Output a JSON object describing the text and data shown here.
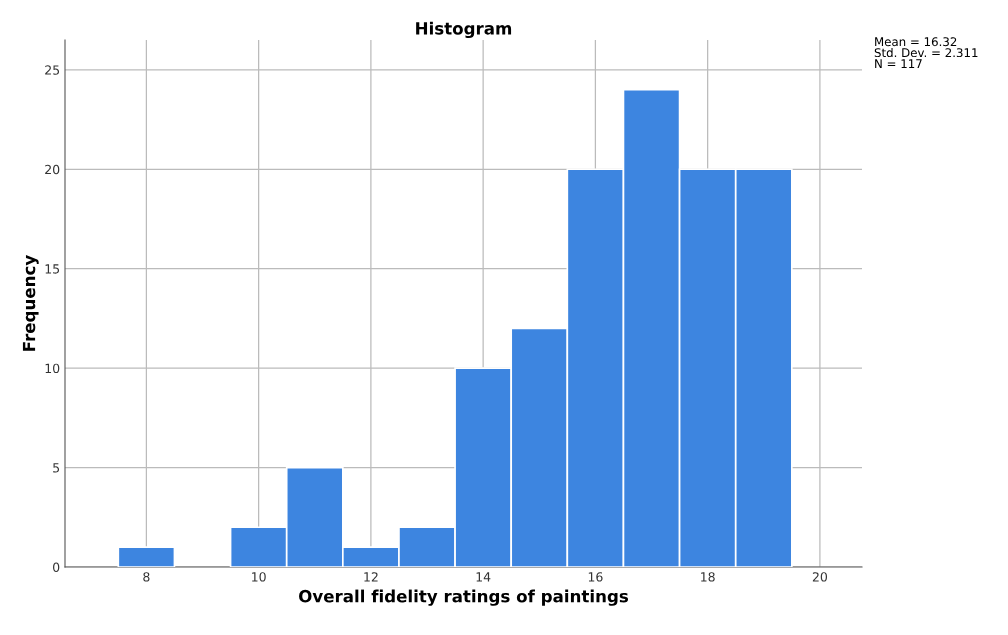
{
  "chart_data": {
    "type": "histogram",
    "title": "Histogram",
    "xlabel": "Overall fidelity ratings of paintings",
    "ylabel": "Frequency",
    "bins": [
      7.5,
      8.5,
      9.5,
      10.5,
      11.5,
      12.5,
      13.5,
      14.5,
      15.5,
      16.5,
      17.5,
      18.5,
      19.5
    ],
    "values": [
      1,
      0,
      2,
      5,
      1,
      2,
      10,
      12,
      20,
      24,
      20,
      20
    ],
    "color": "#3d85e0",
    "xlim": [
      6.55,
      20.75
    ],
    "xticks": [
      8,
      10,
      12,
      14,
      16,
      18,
      20
    ],
    "ylim": [
      0,
      26.5
    ],
    "yticks": [
      0,
      5,
      10,
      15,
      20,
      25
    ],
    "grid": true,
    "annotations": [
      "Mean = 16.32\nStd. Dev. = 2.311\nN = 117"
    ]
  }
}
